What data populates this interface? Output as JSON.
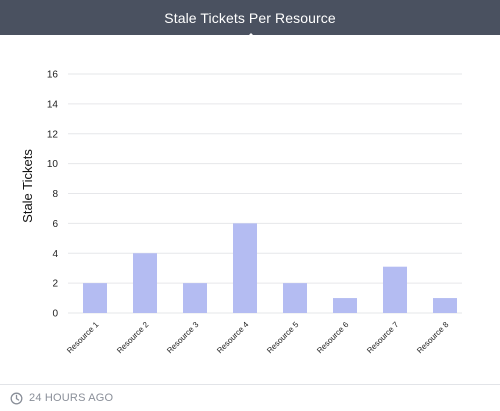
{
  "header": {
    "title": "Stale Tickets Per Resource"
  },
  "footer": {
    "timestamp": "24 HOURS AGO",
    "icon": "clock-icon"
  },
  "colors": {
    "header_bg": "#4a5160",
    "bar": "#b4bcf2",
    "grid": "#e6e7ea"
  },
  "chart_data": {
    "type": "bar",
    "title": "Stale Tickets Per Resource",
    "xlabel": "",
    "ylabel": "Stale Tickets",
    "categories": [
      "Resource 1",
      "Resource 2",
      "Resource 3",
      "Resource 4",
      "Resource 5",
      "Resource 6",
      "Resource 7",
      "Resource 8"
    ],
    "values": [
      2,
      4,
      2,
      6,
      2,
      1,
      3.1,
      1
    ],
    "ylim": [
      0,
      16
    ],
    "yticks": [
      0,
      2,
      4,
      6,
      8,
      10,
      12,
      14,
      16
    ],
    "grid": true,
    "legend": "none"
  }
}
